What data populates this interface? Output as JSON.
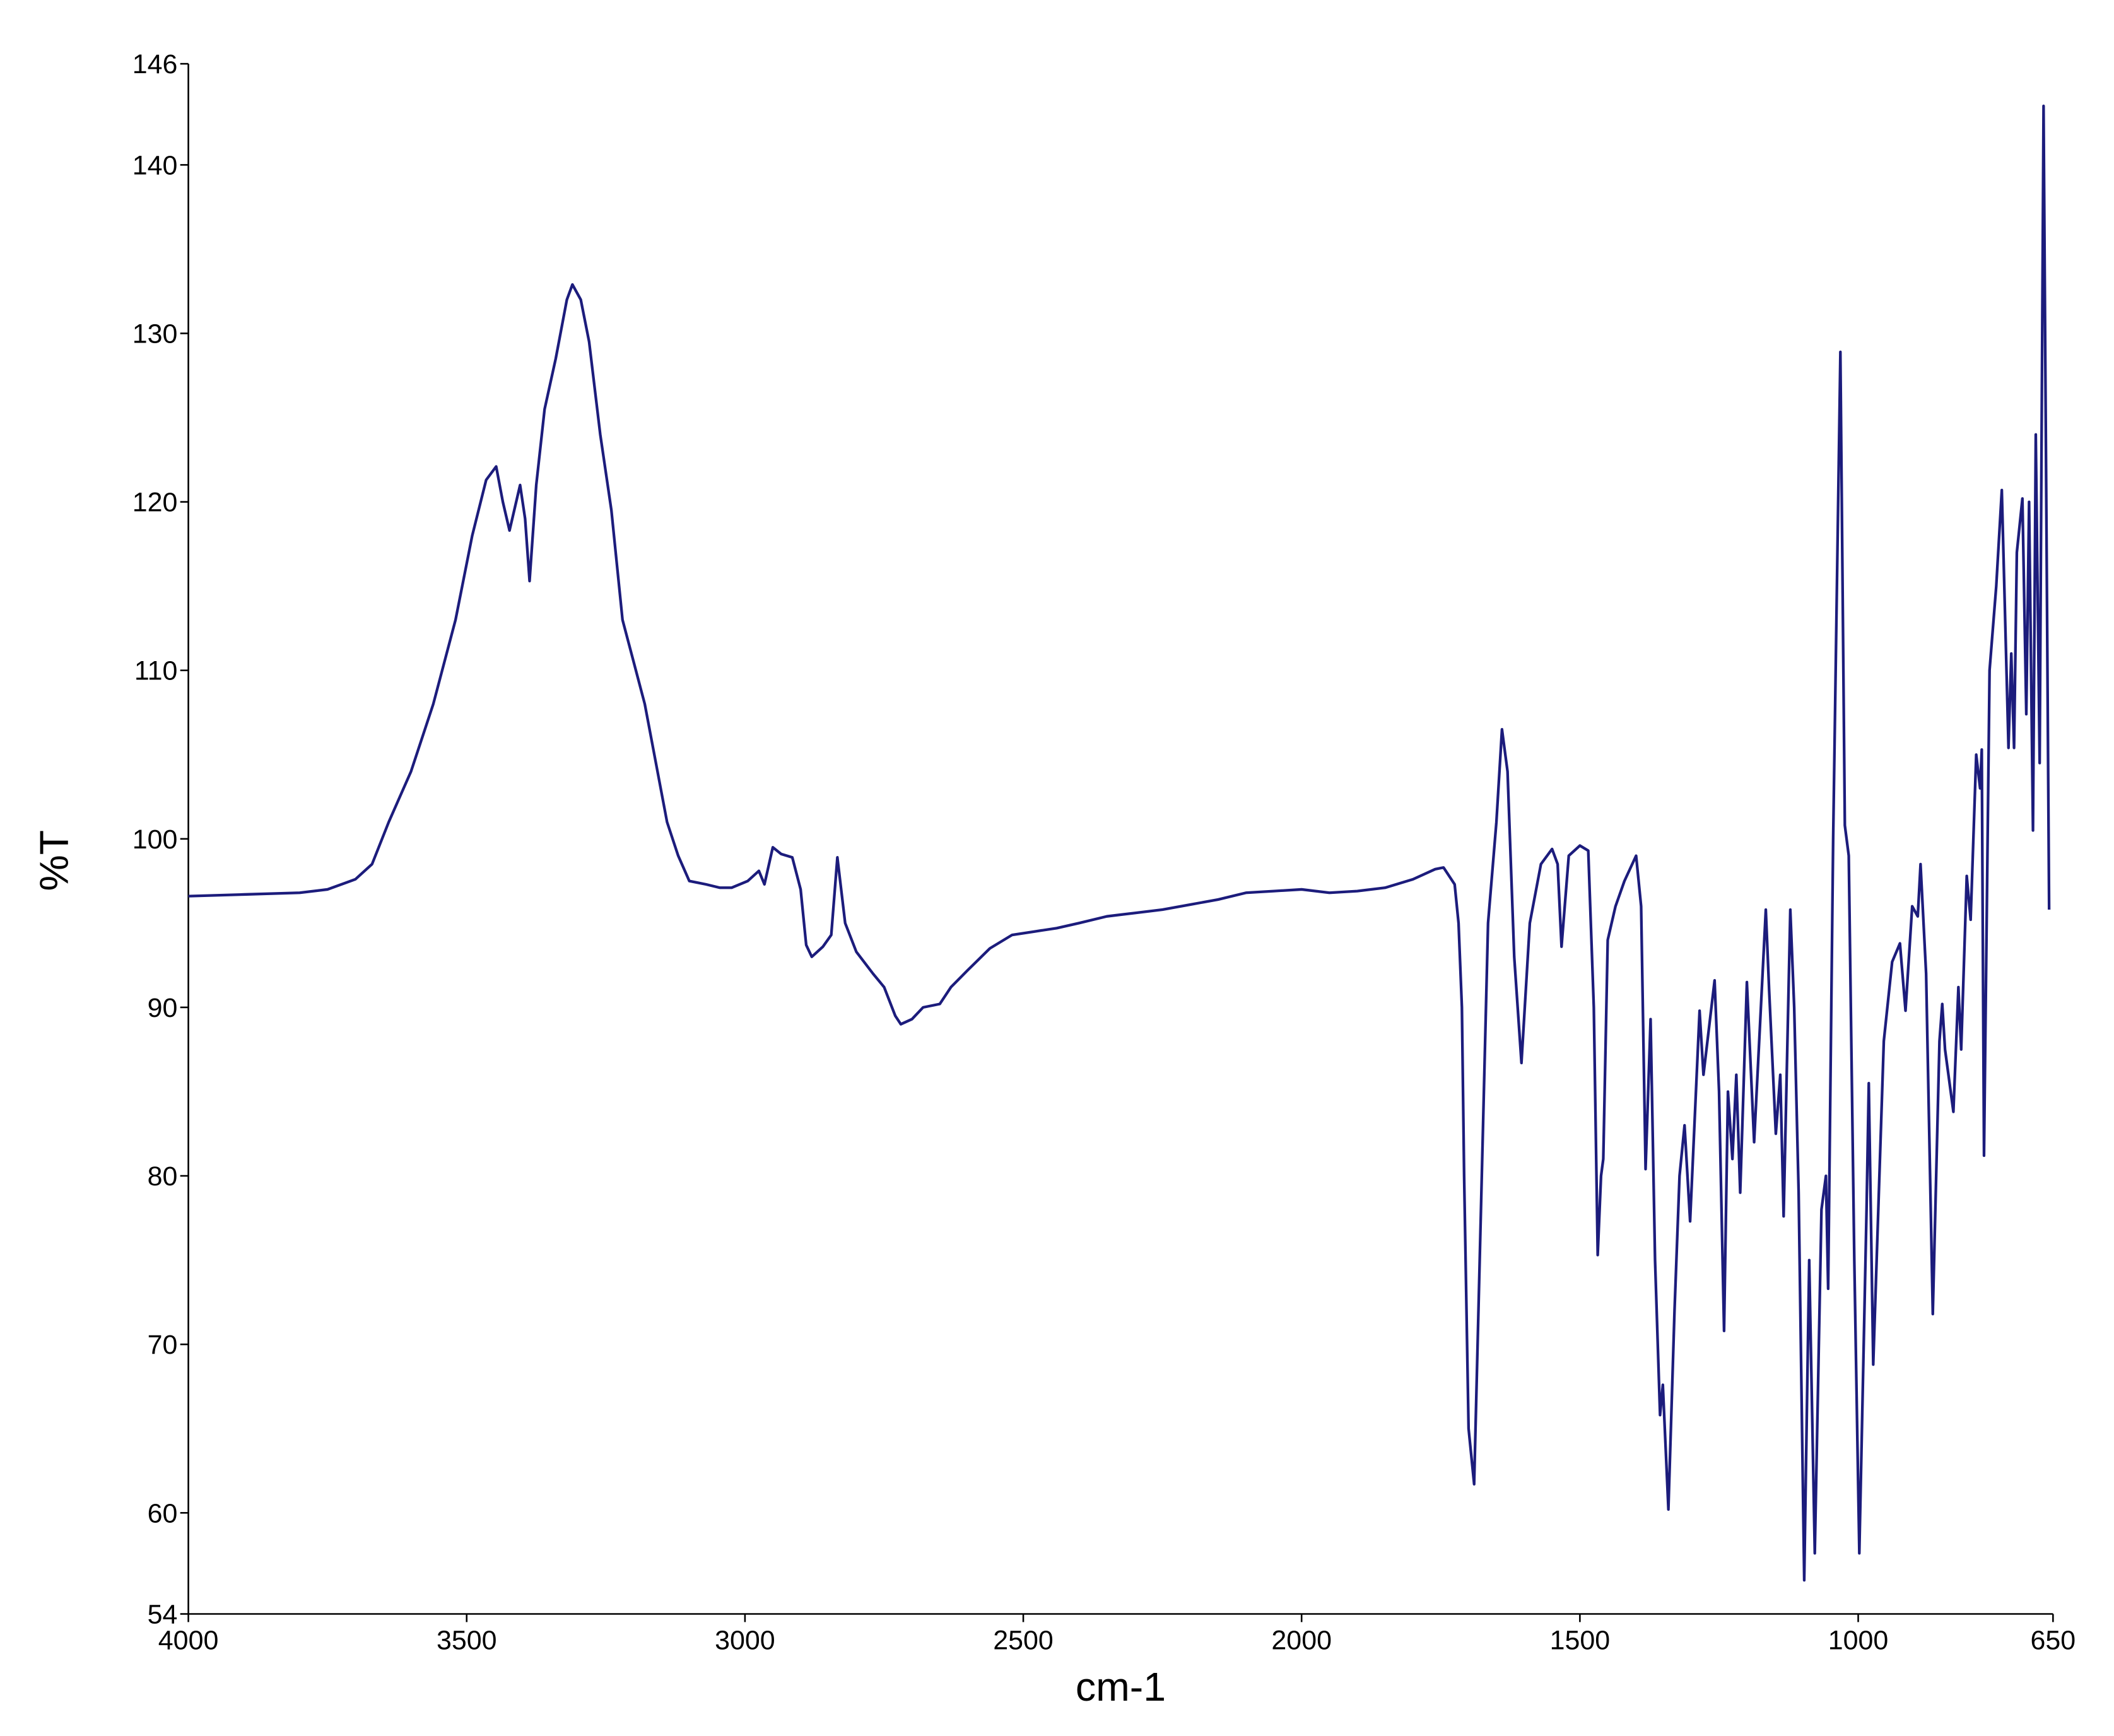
{
  "chart_data": {
    "type": "line",
    "x_label": "cm-1",
    "y_label": "%T",
    "color": "#1c1c7c",
    "xlim": [
      4000,
      650
    ],
    "ylim": [
      54,
      146
    ],
    "xticks": [
      4000,
      3500,
      3000,
      2500,
      2000,
      1500,
      1000,
      650
    ],
    "yticks": [
      54,
      60,
      70,
      80,
      90,
      100,
      110,
      120,
      130,
      140,
      146
    ],
    "x": [
      4000,
      3900,
      3800,
      3750,
      3700,
      3670,
      3640,
      3600,
      3560,
      3520,
      3490,
      3465,
      3447,
      3435,
      3423,
      3404,
      3395,
      3387,
      3375,
      3360,
      3340,
      3320,
      3310,
      3295,
      3280,
      3260,
      3240,
      3220,
      3200,
      3180,
      3160,
      3140,
      3120,
      3100,
      3070,
      3045,
      3024,
      2995,
      2975,
      2965,
      2950,
      2935,
      2915,
      2900,
      2890,
      2880,
      2860,
      2845,
      2834,
      2820,
      2800,
      2770,
      2750,
      2730,
      2720,
      2700,
      2680,
      2650,
      2630,
      2600,
      2560,
      2520,
      2480,
      2440,
      2400,
      2350,
      2300,
      2250,
      2200,
      2150,
      2100,
      2050,
      2000,
      1950,
      1900,
      1850,
      1800,
      1760,
      1745,
      1725,
      1718,
      1712,
      1708,
      1700,
      1690,
      1680,
      1665,
      1650,
      1640,
      1630,
      1618,
      1605,
      1590,
      1570,
      1550,
      1540,
      1533,
      1520,
      1500,
      1485,
      1475,
      1468,
      1462,
      1458,
      1450,
      1436,
      1420,
      1399,
      1390,
      1382,
      1373,
      1365,
      1356,
      1351,
      1341,
      1330,
      1321,
      1312,
      1302,
      1285,
      1278,
      1258,
      1250,
      1241,
      1234,
      1226,
      1219,
      1212,
      1200,
      1187,
      1166,
      1160,
      1148,
      1140,
      1134,
      1122,
      1115,
      1107,
      1097,
      1088,
      1078,
      1066,
      1058,
      1054,
      1045,
      1032,
      1024,
      1017,
      1007,
      998,
      985,
      981,
      973,
      954,
      939,
      925,
      915,
      903,
      893,
      888,
      878,
      866,
      854,
      849,
      844,
      829,
      820,
      815,
      805,
      798,
      788,
      781,
      778,
      774,
      764,
      752,
      742,
      730,
      725,
      720,
      715,
      705,
      698,
      693,
      686,
      681,
      674,
      667,
      657
    ],
    "values": [
      96.6,
      96.7,
      96.8,
      97.0,
      97.6,
      98.5,
      101,
      104,
      108,
      113,
      118,
      121.3,
      122.1,
      120,
      118.3,
      121,
      119,
      115.3,
      121,
      125.5,
      128.5,
      132,
      132.9,
      132,
      129.5,
      124,
      119.5,
      113,
      110.5,
      108,
      104.5,
      101,
      99,
      97.5,
      97.3,
      97.1,
      97.1,
      97.5,
      98.1,
      97.3,
      99.5,
      99.1,
      98.9,
      97,
      93.7,
      93,
      93.6,
      94.3,
      98.9,
      95,
      93.3,
      92,
      91.2,
      89.5,
      89,
      89.3,
      90,
      90.2,
      91.2,
      92.2,
      93.5,
      94.3,
      94.5,
      94.7,
      95,
      95.4,
      95.6,
      95.8,
      96.1,
      96.4,
      96.8,
      96.9,
      97,
      96.8,
      96.9,
      97.1,
      97.6,
      98.2,
      98.3,
      97.3,
      95,
      90,
      80,
      65,
      61.7,
      75,
      95,
      101,
      106.5,
      104,
      93,
      86.7,
      95,
      98.5,
      99.4,
      98.5,
      93.6,
      99,
      99.6,
      99.3,
      90,
      75.3,
      80,
      81,
      94,
      96,
      97.5,
      99,
      96,
      80.4,
      89.3,
      75,
      65.8,
      67.6,
      60.2,
      72,
      80,
      83,
      77.3,
      89.8,
      86,
      91.6,
      85,
      70.8,
      85,
      81,
      86,
      79,
      91.5,
      82,
      95.8,
      91,
      82.5,
      86,
      77.6,
      95.8,
      90,
      79,
      56,
      75,
      57.6,
      78,
      80,
      73.3,
      100,
      128.9,
      100.8,
      99,
      75,
      57.6,
      78,
      85.5,
      68.8,
      88,
      92.7,
      93.8,
      89.8,
      96,
      95.4,
      98.5,
      92,
      71.8,
      88,
      90.2,
      87.5,
      83.8,
      91.2,
      87.5,
      97.8,
      95.2,
      105,
      103,
      105.3,
      81.2,
      110,
      115,
      120.7,
      105.4,
      111,
      105.4,
      117,
      120.2,
      107.4,
      120,
      100.5,
      124,
      104.5,
      143.5,
      95.8
    ]
  }
}
